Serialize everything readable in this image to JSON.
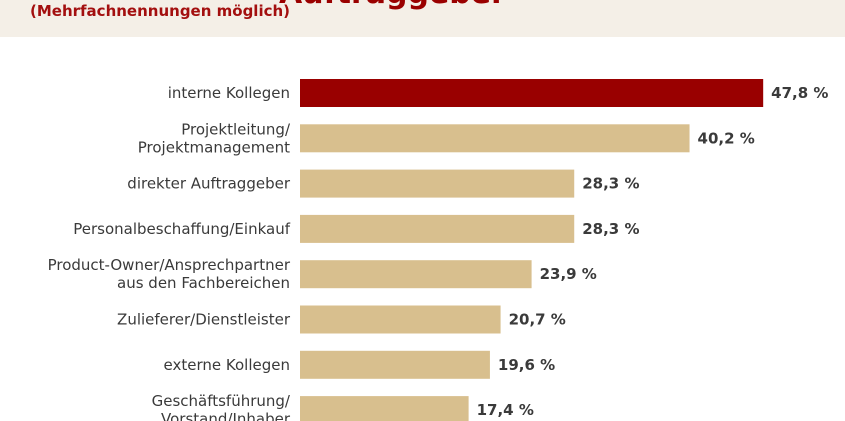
{
  "header": {
    "title": "Auftraggeber",
    "subtitle": "(Mehrfachnennungen möglich)"
  },
  "colors": {
    "highlight": "#990000",
    "bar": "#d8bf8e",
    "band": "#f4efe7",
    "text": "#3a3a3a"
  },
  "chart_data": {
    "type": "bar",
    "orientation": "horizontal",
    "title": "Auftraggeber",
    "subtitle": "(Mehrfachnennungen möglich)",
    "unit": "%",
    "xlim": [
      0,
      50
    ],
    "grid": false,
    "categories": [
      "interne Kollegen",
      "Projektleitung/\nProjektmanagement",
      "direkter Auftraggeber",
      "Personalbeschaffung/Einkauf",
      "Product-Owner/Ansprechpartner\naus den Fachbereichen",
      "Zulieferer/Dienstleister",
      "externe Kollegen",
      "Geschäftsführung/\nVorstand/Inhaber"
    ],
    "values": [
      47.8,
      40.2,
      28.3,
      28.3,
      23.9,
      20.7,
      19.6,
      17.4
    ],
    "value_labels": [
      "47,8 %",
      "40,2 %",
      "28,3 %",
      "28,3 %",
      "23,9 %",
      "20,7 %",
      "19,6 %",
      "17,4 %"
    ],
    "highlight_index": 0
  }
}
